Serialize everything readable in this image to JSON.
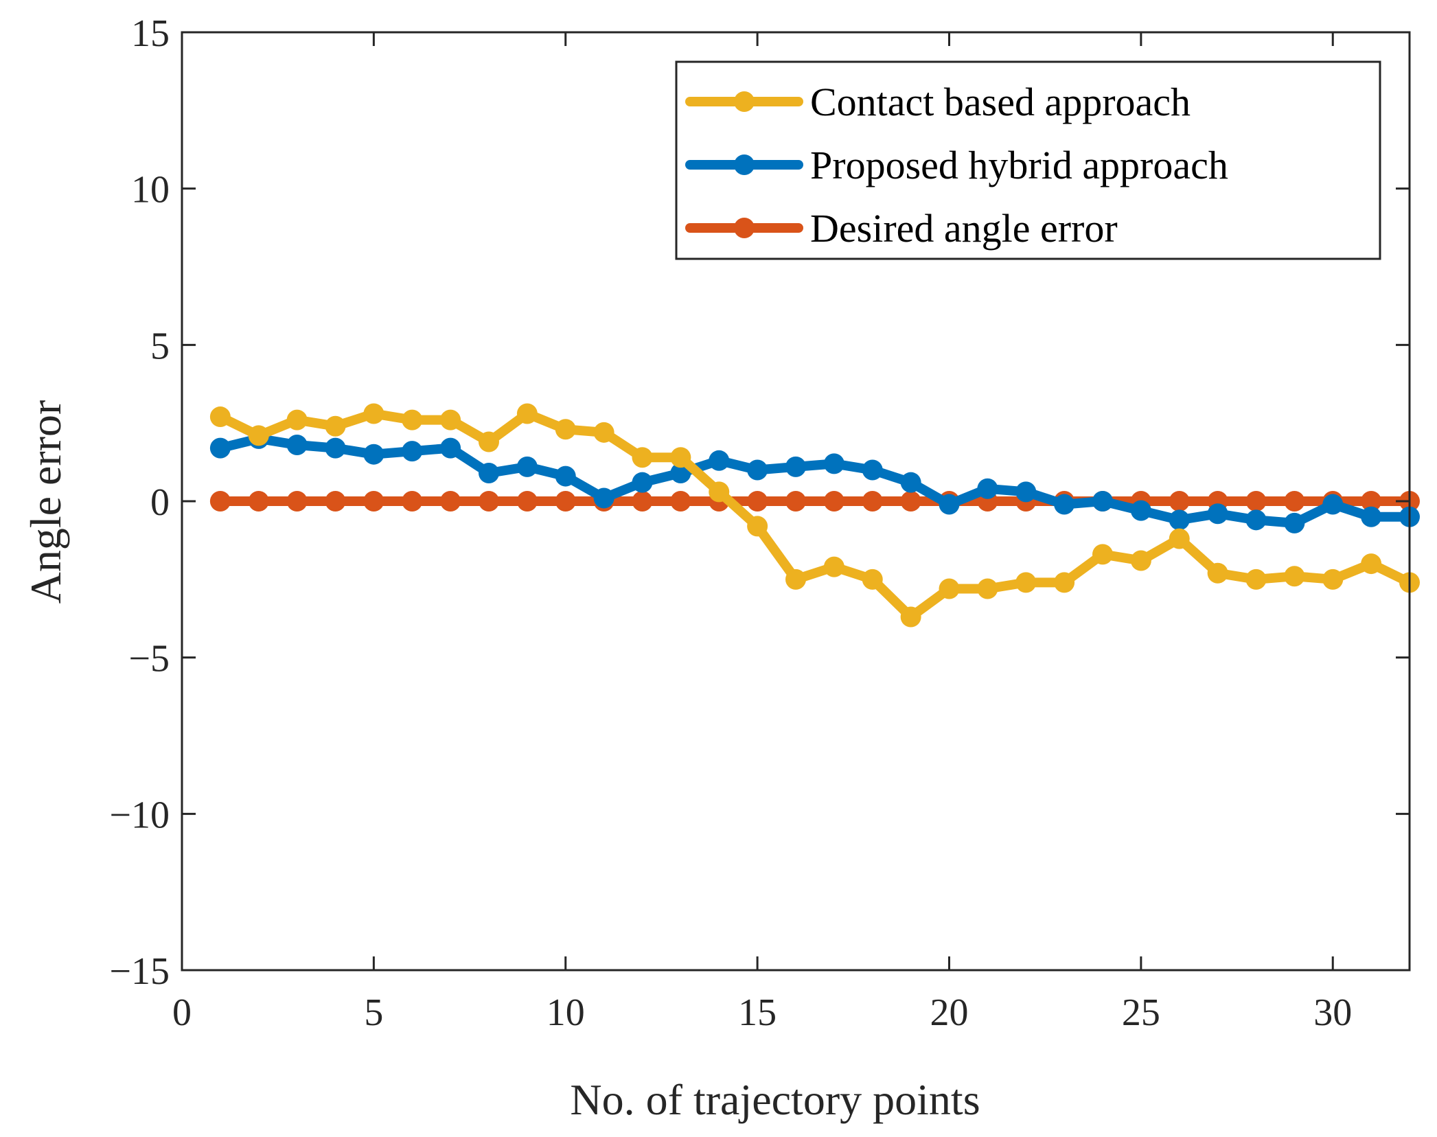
{
  "chart_data": {
    "type": "line",
    "title": "",
    "xlabel": "No. of trajectory points",
    "ylabel": "Angle error",
    "xlim": [
      0,
      32
    ],
    "ylim": [
      -15,
      15
    ],
    "xticks": [
      0,
      5,
      10,
      15,
      20,
      25,
      30
    ],
    "yticks": [
      -15,
      -10,
      -5,
      0,
      5,
      10,
      15
    ],
    "xtick_labels": [
      "0",
      "5",
      "10",
      "15",
      "20",
      "25",
      "30"
    ],
    "ytick_labels": [
      "−15",
      "−10",
      "−5",
      "0",
      "5",
      "10",
      "15"
    ],
    "grid": false,
    "legend_position": "top-right",
    "x": [
      1,
      2,
      3,
      4,
      5,
      6,
      7,
      8,
      9,
      10,
      11,
      12,
      13,
      14,
      15,
      16,
      17,
      18,
      19,
      20,
      21,
      22,
      23,
      24,
      25,
      26,
      27,
      28,
      29,
      30,
      31,
      32
    ],
    "series": [
      {
        "name": "Contact based approach",
        "color": "#EDB120",
        "values": [
          2.7,
          2.1,
          2.6,
          2.4,
          2.8,
          2.6,
          2.6,
          1.9,
          2.8,
          2.3,
          2.2,
          1.4,
          1.4,
          0.3,
          -0.8,
          -2.5,
          -2.1,
          -2.5,
          -3.7,
          -2.8,
          -2.8,
          -2.6,
          -2.6,
          -1.7,
          -1.9,
          -1.2,
          -2.3,
          -2.5,
          -2.4,
          -2.5,
          -2.0,
          -2.6
        ]
      },
      {
        "name": "Proposed hybrid approach",
        "color": "#0072BD",
        "values": [
          1.7,
          2.0,
          1.8,
          1.7,
          1.5,
          1.6,
          1.7,
          0.9,
          1.1,
          0.8,
          0.1,
          0.6,
          0.9,
          1.3,
          1.0,
          1.1,
          1.2,
          1.0,
          0.6,
          -0.1,
          0.4,
          0.3,
          -0.1,
          0.0,
          -0.3,
          -0.6,
          -0.4,
          -0.6,
          -0.7,
          -0.1,
          -0.5,
          -0.5
        ]
      },
      {
        "name": "Desired angle error",
        "color": "#D95319",
        "values": [
          0,
          0,
          0,
          0,
          0,
          0,
          0,
          0,
          0,
          0,
          0,
          0,
          0,
          0,
          0,
          0,
          0,
          0,
          0,
          0,
          0,
          0,
          0,
          0,
          0,
          0,
          0,
          0,
          0,
          0,
          0,
          0
        ]
      }
    ]
  }
}
